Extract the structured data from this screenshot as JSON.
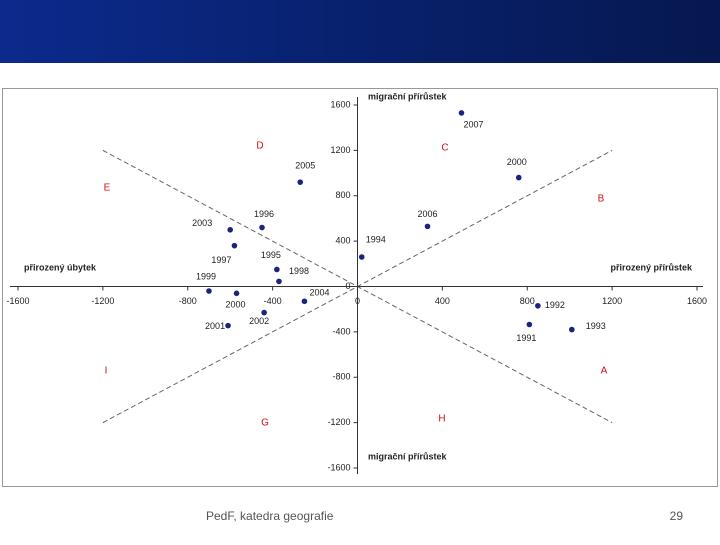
{
  "chart_data": {
    "type": "scatter",
    "x_label_left": "přirozený úbytek",
    "x_label_right": "přirozený přírůstek",
    "y_label_top": "migrační přírůstek",
    "y_label_bottom": "migrační přírůstek",
    "annotations": [
      "A",
      "B",
      "C",
      "D",
      "E",
      "G",
      "H",
      "I"
    ],
    "series": [
      {
        "color": "#1a237e",
        "labels": [
          "2007",
          "2000",
          "2006",
          "1994",
          "1992",
          "1993",
          "1991",
          "2005",
          "1996",
          "2003",
          "1997",
          "1995",
          "1998",
          "1999",
          "2000",
          "2004",
          "2002",
          "2001"
        ],
        "x": [
          490,
          760,
          330,
          20,
          850,
          1010,
          810,
          -270,
          -450,
          -600,
          -580,
          -380,
          -370,
          -700,
          -570,
          -250,
          -440,
          -610
        ],
        "values": [
          1530,
          960,
          530,
          260,
          -170,
          -380,
          -335,
          920,
          520,
          500,
          360,
          150,
          45,
          -40,
          -60,
          -130,
          -230,
          -345
        ]
      }
    ],
    "xlim": [
      -1600,
      1600
    ],
    "xticks": [
      -1600,
      -1200,
      -800,
      -400,
      0,
      400,
      800,
      1200,
      1600
    ],
    "ylim": [
      -1600,
      1600
    ],
    "yticks": [
      -1600,
      -1200,
      -800,
      -400,
      0,
      400,
      800,
      1200,
      1600
    ]
  },
  "footer": {
    "text": "PedF, katedra geografie",
    "page": "29"
  }
}
